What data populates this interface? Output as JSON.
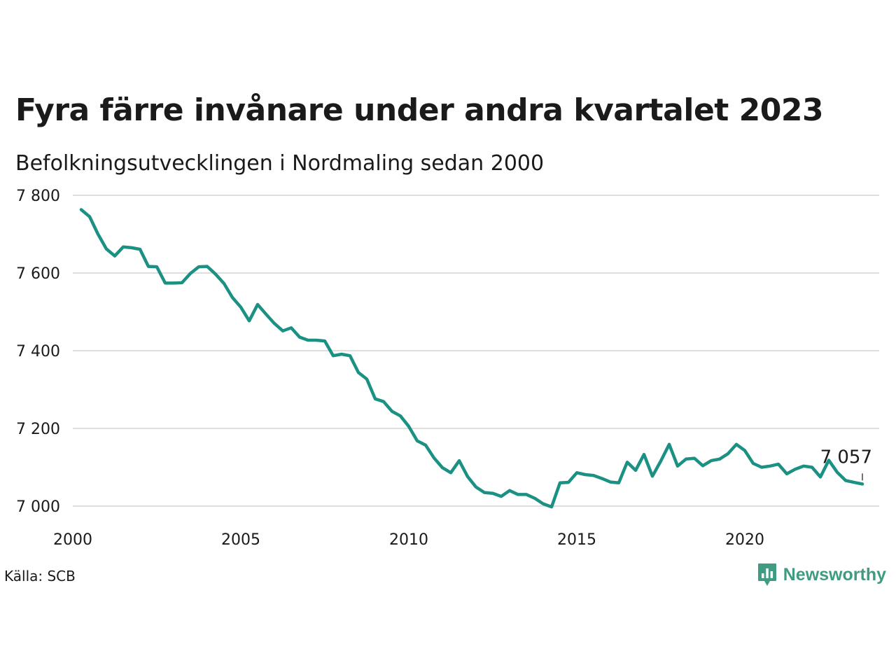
{
  "header": {
    "title": "Fyra färre invånare under andra kvartalet 2023",
    "subtitle": "Befolkningsutvecklingen i Nordmaling sedan 2000"
  },
  "footer": {
    "source": "Källa: SCB",
    "brand": "Newsworthy",
    "brand_icon": "newsworthy-logo-icon"
  },
  "colors": {
    "line": "#1a9183",
    "grid": "#dedede",
    "brand": "#3f9b82"
  },
  "chart_data": {
    "type": "line",
    "title": "Fyra färre invånare under andra kvartalet 2023",
    "subtitle": "Befolkningsutvecklingen i Nordmaling sedan 2000",
    "xlabel": "",
    "ylabel": "",
    "xlim": [
      2000,
      2024
    ],
    "ylim": [
      7000,
      7800
    ],
    "x_ticks": [
      2000,
      2005,
      2010,
      2015,
      2020
    ],
    "x_tick_labels": [
      "2000",
      "2005",
      "2010",
      "2015",
      "2020"
    ],
    "y_ticks": [
      7000,
      7200,
      7400,
      7600,
      7800
    ],
    "y_tick_labels": [
      "7 000",
      "7 200",
      "7 400",
      "7 600",
      "7 800"
    ],
    "grid": true,
    "end_label": "7 057",
    "series": [
      {
        "x": [
          2000.25,
          2000.5,
          2000.75,
          2001.0,
          2001.25,
          2001.5,
          2001.75,
          2002.0,
          2002.25,
          2002.5,
          2002.75,
          2003.0,
          2003.25,
          2003.5,
          2003.75,
          2004.0,
          2004.25,
          2004.5,
          2004.75,
          2005.0,
          2005.25,
          2005.5,
          2005.75,
          2006.0,
          2006.25,
          2006.5,
          2006.75,
          2007.0,
          2007.25,
          2007.5,
          2007.75,
          2008.0,
          2008.25,
          2008.5,
          2008.75,
          2009.0,
          2009.25,
          2009.5,
          2009.75,
          2010.0,
          2010.25,
          2010.5,
          2010.75,
          2011.0,
          2011.25,
          2011.5,
          2011.75,
          2012.0,
          2012.25,
          2012.5,
          2012.75,
          2013.0,
          2013.25,
          2013.5,
          2013.75,
          2014.0,
          2014.25,
          2014.5,
          2014.75,
          2015.0,
          2015.25,
          2015.5,
          2015.75,
          2016.0,
          2016.25,
          2016.5,
          2016.75,
          2017.0,
          2017.25,
          2017.5,
          2017.75,
          2018.0,
          2018.25,
          2018.5,
          2018.75,
          2019.0,
          2019.25,
          2019.5,
          2019.75,
          2020.0,
          2020.25,
          2020.5,
          2020.75,
          2021.0,
          2021.25,
          2021.5,
          2021.75,
          2022.0,
          2022.25,
          2022.5,
          2022.75,
          2023.0,
          2023.25,
          2023.5
        ],
        "y": [
          7763,
          7745,
          7700,
          7662,
          7644,
          7667,
          7665,
          7661,
          7617,
          7616,
          7574,
          7574,
          7575,
          7599,
          7616,
          7617,
          7597,
          7573,
          7537,
          7512,
          7477,
          7519,
          7494,
          7470,
          7451,
          7459,
          7435,
          7427,
          7427,
          7425,
          7387,
          7391,
          7387,
          7344,
          7327,
          7276,
          7269,
          7244,
          7232,
          7205,
          7168,
          7157,
          7124,
          7099,
          7086,
          7117,
          7076,
          7049,
          7035,
          7033,
          7025,
          7040,
          7030,
          7030,
          7020,
          7006,
          6998,
          7060,
          7061,
          7086,
          7081,
          7079,
          7071,
          7062,
          7060,
          7113,
          7092,
          7133,
          7077,
          7116,
          7159,
          7103,
          7121,
          7123,
          7104,
          7117,
          7121,
          7135,
          7159,
          7143,
          7110,
          7100,
          7103,
          7108,
          7083,
          7095,
          7103,
          7100,
          7075,
          7118,
          7087,
          7066,
          7061,
          7057
        ]
      }
    ]
  }
}
